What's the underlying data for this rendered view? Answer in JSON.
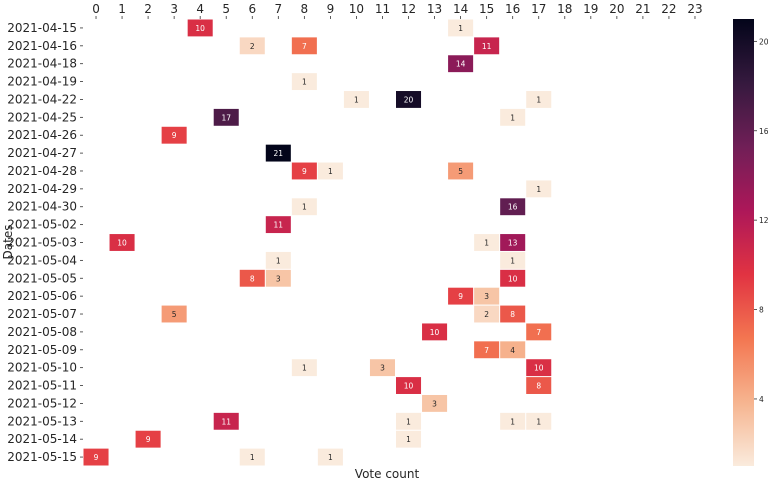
{
  "chart_data": {
    "type": "heatmap",
    "title": "",
    "xlabel": "Vote count",
    "ylabel": "Dates",
    "x_categories": [
      "0",
      "1",
      "2",
      "3",
      "4",
      "5",
      "6",
      "7",
      "8",
      "9",
      "10",
      "11",
      "12",
      "13",
      "14",
      "15",
      "16",
      "17",
      "18",
      "19",
      "20",
      "21",
      "22",
      "23"
    ],
    "y_categories": [
      "2021-04-15",
      "2021-04-16",
      "2021-04-18",
      "2021-04-19",
      "2021-04-22",
      "2021-04-25",
      "2021-04-26",
      "2021-04-27",
      "2021-04-28",
      "2021-04-29",
      "2021-04-30",
      "2021-05-02",
      "2021-05-03",
      "2021-05-04",
      "2021-05-05",
      "2021-05-06",
      "2021-05-07",
      "2021-05-08",
      "2021-05-09",
      "2021-05-10",
      "2021-05-11",
      "2021-05-12",
      "2021-05-13",
      "2021-05-14",
      "2021-05-15"
    ],
    "cells": [
      {
        "row": 0,
        "col": 4,
        "value": 10
      },
      {
        "row": 0,
        "col": 14,
        "value": 1
      },
      {
        "row": 1,
        "col": 6,
        "value": 2
      },
      {
        "row": 1,
        "col": 8,
        "value": 7
      },
      {
        "row": 1,
        "col": 15,
        "value": 11
      },
      {
        "row": 2,
        "col": 14,
        "value": 14
      },
      {
        "row": 3,
        "col": 8,
        "value": 1
      },
      {
        "row": 4,
        "col": 10,
        "value": 1
      },
      {
        "row": 4,
        "col": 12,
        "value": 20
      },
      {
        "row": 4,
        "col": 17,
        "value": 1
      },
      {
        "row": 5,
        "col": 5,
        "value": 17
      },
      {
        "row": 5,
        "col": 16,
        "value": 1
      },
      {
        "row": 6,
        "col": 3,
        "value": 9
      },
      {
        "row": 7,
        "col": 7,
        "value": 21
      },
      {
        "row": 8,
        "col": 8,
        "value": 9
      },
      {
        "row": 8,
        "col": 9,
        "value": 1
      },
      {
        "row": 8,
        "col": 14,
        "value": 5
      },
      {
        "row": 9,
        "col": 17,
        "value": 1
      },
      {
        "row": 10,
        "col": 8,
        "value": 1
      },
      {
        "row": 10,
        "col": 16,
        "value": 16
      },
      {
        "row": 11,
        "col": 7,
        "value": 11
      },
      {
        "row": 12,
        "col": 1,
        "value": 10
      },
      {
        "row": 12,
        "col": 15,
        "value": 1
      },
      {
        "row": 12,
        "col": 16,
        "value": 13
      },
      {
        "row": 13,
        "col": 7,
        "value": 1
      },
      {
        "row": 13,
        "col": 16,
        "value": 1
      },
      {
        "row": 14,
        "col": 6,
        "value": 8
      },
      {
        "row": 14,
        "col": 7,
        "value": 3
      },
      {
        "row": 14,
        "col": 16,
        "value": 10
      },
      {
        "row": 15,
        "col": 14,
        "value": 9
      },
      {
        "row": 15,
        "col": 15,
        "value": 3
      },
      {
        "row": 16,
        "col": 3,
        "value": 5
      },
      {
        "row": 16,
        "col": 15,
        "value": 2
      },
      {
        "row": 16,
        "col": 16,
        "value": 8
      },
      {
        "row": 17,
        "col": 13,
        "value": 10
      },
      {
        "row": 17,
        "col": 17,
        "value": 7
      },
      {
        "row": 18,
        "col": 15,
        "value": 7
      },
      {
        "row": 18,
        "col": 16,
        "value": 4
      },
      {
        "row": 19,
        "col": 8,
        "value": 1
      },
      {
        "row": 19,
        "col": 11,
        "value": 3
      },
      {
        "row": 19,
        "col": 17,
        "value": 10
      },
      {
        "row": 20,
        "col": 12,
        "value": 10
      },
      {
        "row": 20,
        "col": 17,
        "value": 8
      },
      {
        "row": 21,
        "col": 13,
        "value": 3
      },
      {
        "row": 22,
        "col": 5,
        "value": 11
      },
      {
        "row": 22,
        "col": 12,
        "value": 1
      },
      {
        "row": 22,
        "col": 16,
        "value": 1
      },
      {
        "row": 22,
        "col": 17,
        "value": 1
      },
      {
        "row": 23,
        "col": 2,
        "value": 9
      },
      {
        "row": 23,
        "col": 12,
        "value": 1
      },
      {
        "row": 24,
        "col": 0,
        "value": 9
      },
      {
        "row": 24,
        "col": 6,
        "value": 1
      },
      {
        "row": 24,
        "col": 9,
        "value": 1
      }
    ],
    "colorbar": {
      "min": 1,
      "max": 21,
      "ticks": [
        4,
        8,
        12,
        16,
        20
      ],
      "colormap": "rocket_r",
      "stops": [
        "#faebdd",
        "#f6b48f",
        "#f37651",
        "#e13342",
        "#ad1759",
        "#701f57",
        "#35193e",
        "#03051a"
      ]
    },
    "grid": false,
    "legend": "colorbar-right"
  }
}
